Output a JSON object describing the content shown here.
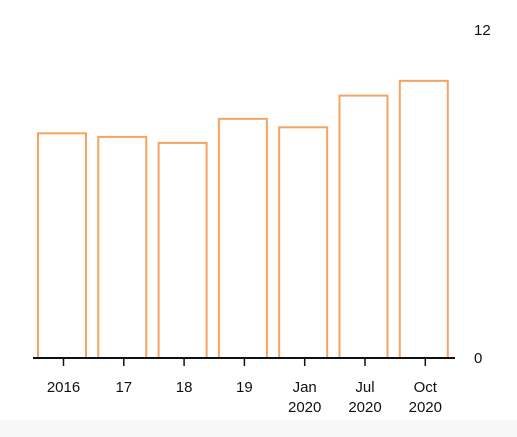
{
  "chart_data": {
    "type": "bar",
    "categories": [
      "2016",
      "17",
      "18",
      "19",
      "Jan 2020",
      "Jul 2020",
      "Oct 2020"
    ],
    "x_tick_labels": [
      [
        "2016"
      ],
      [
        "17"
      ],
      [
        "18"
      ],
      [
        "19"
      ],
      [
        "Jan",
        "2020"
      ],
      [
        "Jul",
        "2020"
      ],
      [
        "Oct",
        "2020"
      ]
    ],
    "values": [
      8.22,
      8.09,
      7.87,
      8.75,
      8.44,
      9.6,
      10.14
    ],
    "y_axis_side": "right",
    "y_ticks": [
      0,
      12
    ],
    "ylim": [
      0,
      12
    ],
    "title": "",
    "xlabel": "",
    "ylabel": "",
    "bar_color": "#f4a460",
    "grid": false,
    "legend": "none"
  }
}
